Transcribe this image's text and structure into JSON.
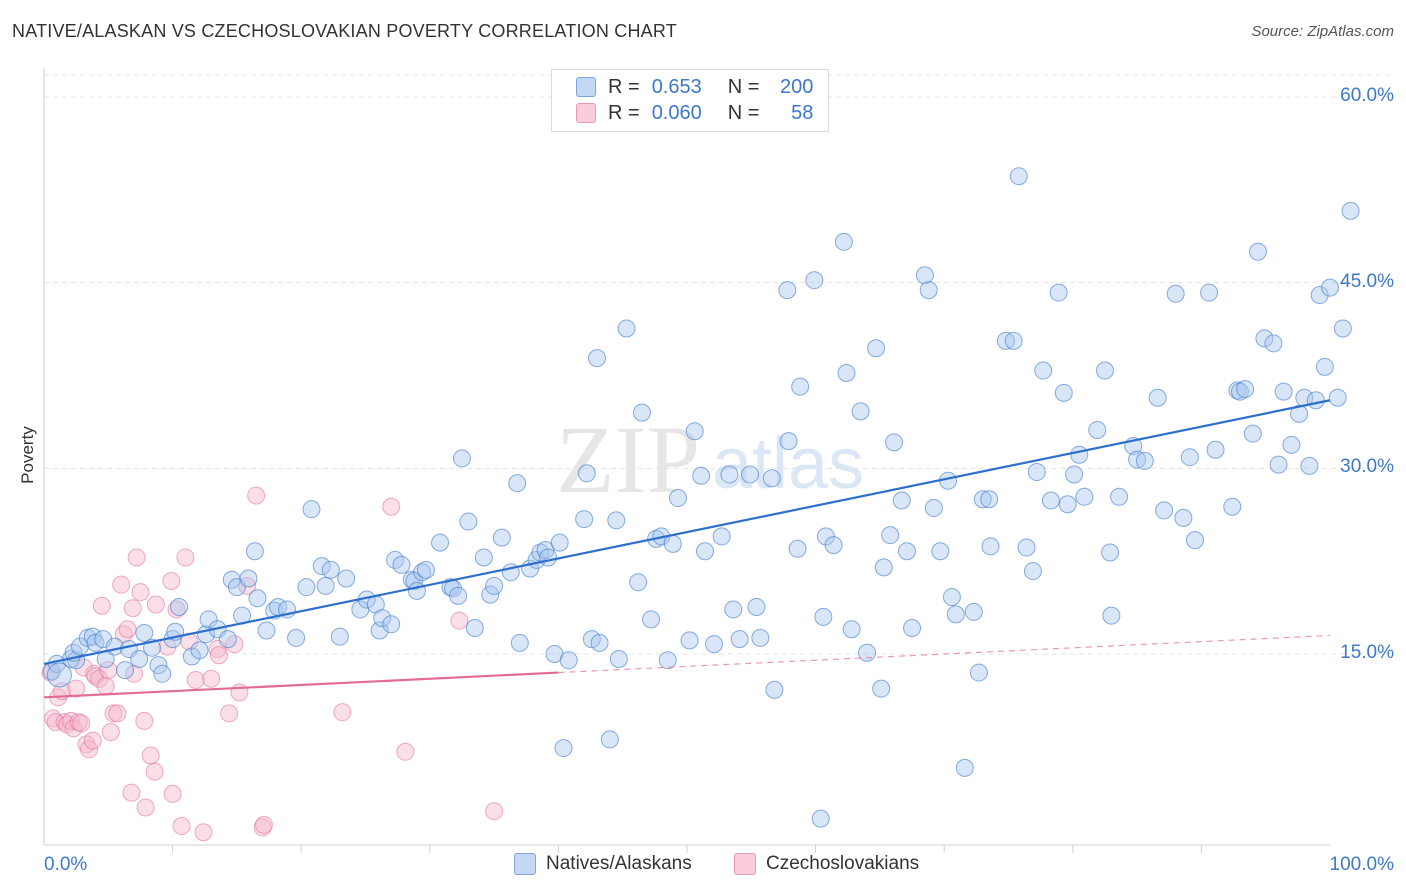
{
  "title": "NATIVE/ALASKAN VS CZECHOSLOVAKIAN POVERTY CORRELATION CHART",
  "source": "Source: ZipAtlas.com",
  "colors": {
    "blue": "#3d78c9",
    "blue_fill": "#a9c8ef",
    "blue_line": "#2d6fcc",
    "pink": "#e26b98",
    "pink_fill": "#f5b8cd",
    "grid": "#e4e4e4"
  },
  "legend": {
    "rows": [
      {
        "r_label": "R =",
        "r_value": "0.653",
        "n_label": "N =",
        "n_value": "200"
      },
      {
        "r_label": "R =",
        "r_value": "0.060",
        "n_label": "N =",
        "n_value": "58"
      }
    ]
  },
  "bottom_legend": {
    "series_1": "Natives/Alaskans",
    "series_2": "Czechoslovakians"
  },
  "chart_data": {
    "type": "scatter",
    "title": "NATIVE/ALASKAN VS CZECHOSLOVAKIAN POVERTY CORRELATION CHART",
    "xlabel": "",
    "ylabel": "Poverty",
    "xlim": [
      0,
      100
    ],
    "ylim": [
      0,
      60
    ],
    "x_tick_labels": [
      "0.0%",
      "100.0%"
    ],
    "y_tick_labels": [
      "15.0%",
      "30.0%",
      "45.0%",
      "60.0%"
    ],
    "y_ticks": [
      15,
      30,
      45,
      60
    ],
    "grid": true,
    "legend_position": "top-center",
    "series": [
      {
        "name": "Natives/Alaskans",
        "r": 0.653,
        "n": 200,
        "trend": {
          "x": [
            0,
            100
          ],
          "y": [
            14.2,
            35.5
          ]
        },
        "points": [
          [
            0.6,
            13.6
          ],
          [
            1.0,
            14.2
          ],
          [
            1.2,
            13.3
          ],
          [
            2.1,
            14.6
          ],
          [
            2.5,
            14.5
          ],
          [
            2.3,
            15.1
          ],
          [
            2.8,
            15.6
          ],
          [
            3.4,
            16.3
          ],
          [
            3.8,
            16.4
          ],
          [
            4.0,
            15.9
          ],
          [
            4.6,
            16.2
          ],
          [
            4.8,
            14.6
          ],
          [
            5.5,
            15.6
          ],
          [
            6.3,
            13.7
          ],
          [
            6.6,
            15.4
          ],
          [
            7.4,
            14.6
          ],
          [
            7.8,
            16.7
          ],
          [
            8.4,
            15.5
          ],
          [
            8.9,
            14.1
          ],
          [
            9.2,
            13.4
          ],
          [
            10.0,
            16.2
          ],
          [
            10.2,
            16.8
          ],
          [
            10.5,
            18.8
          ],
          [
            11.5,
            14.8
          ],
          [
            12.1,
            15.3
          ],
          [
            12.6,
            16.6
          ],
          [
            12.8,
            17.8
          ],
          [
            13.5,
            17.0
          ],
          [
            14.3,
            16.2
          ],
          [
            14.6,
            21.0
          ],
          [
            15.0,
            20.4
          ],
          [
            15.4,
            18.1
          ],
          [
            15.9,
            21.1
          ],
          [
            16.4,
            23.3
          ],
          [
            16.6,
            19.5
          ],
          [
            17.3,
            16.9
          ],
          [
            17.9,
            18.5
          ],
          [
            18.2,
            18.8
          ],
          [
            18.9,
            18.6
          ],
          [
            19.6,
            16.3
          ],
          [
            20.4,
            20.4
          ],
          [
            20.8,
            26.7
          ],
          [
            21.6,
            22.1
          ],
          [
            21.9,
            20.5
          ],
          [
            22.3,
            21.8
          ],
          [
            23.0,
            16.4
          ],
          [
            23.5,
            21.1
          ],
          [
            24.6,
            18.6
          ],
          [
            25.1,
            19.4
          ],
          [
            25.8,
            19.0
          ],
          [
            26.1,
            16.9
          ],
          [
            26.3,
            17.9
          ],
          [
            27.0,
            17.4
          ],
          [
            27.3,
            22.6
          ],
          [
            27.8,
            22.2
          ],
          [
            28.6,
            21.0
          ],
          [
            28.8,
            20.9
          ],
          [
            29.0,
            20.1
          ],
          [
            29.4,
            21.6
          ],
          [
            29.7,
            21.8
          ],
          [
            30.8,
            24.0
          ],
          [
            31.6,
            20.4
          ],
          [
            31.8,
            20.3
          ],
          [
            32.2,
            19.7
          ],
          [
            32.5,
            30.8
          ],
          [
            33.0,
            25.7
          ],
          [
            33.5,
            17.1
          ],
          [
            34.2,
            22.8
          ],
          [
            34.7,
            19.8
          ],
          [
            35.0,
            20.5
          ],
          [
            35.6,
            24.4
          ],
          [
            36.3,
            21.6
          ],
          [
            36.8,
            28.8
          ],
          [
            37.0,
            15.9
          ],
          [
            37.8,
            21.9
          ],
          [
            38.3,
            22.6
          ],
          [
            38.6,
            23.2
          ],
          [
            39.0,
            23.4
          ],
          [
            39.2,
            22.8
          ],
          [
            39.7,
            15.0
          ],
          [
            40.1,
            24.0
          ],
          [
            40.4,
            7.4
          ],
          [
            40.8,
            14.5
          ],
          [
            42.0,
            25.9
          ],
          [
            42.2,
            29.6
          ],
          [
            42.6,
            16.2
          ],
          [
            43.0,
            38.9
          ],
          [
            43.2,
            15.9
          ],
          [
            44.0,
            8.1
          ],
          [
            44.7,
            14.6
          ],
          [
            44.5,
            25.8
          ],
          [
            45.3,
            41.3
          ],
          [
            46.2,
            20.8
          ],
          [
            46.5,
            34.5
          ],
          [
            47.2,
            17.8
          ],
          [
            47.6,
            24.3
          ],
          [
            48.0,
            24.5
          ],
          [
            48.5,
            14.5
          ],
          [
            48.9,
            23.9
          ],
          [
            49.3,
            27.6
          ],
          [
            50.2,
            16.1
          ],
          [
            50.6,
            33.0
          ],
          [
            51.1,
            29.4
          ],
          [
            51.4,
            23.3
          ],
          [
            52.1,
            15.8
          ],
          [
            52.7,
            24.5
          ],
          [
            53.3,
            29.5
          ],
          [
            53.6,
            18.6
          ],
          [
            54.1,
            16.2
          ],
          [
            54.9,
            29.5
          ],
          [
            55.4,
            18.8
          ],
          [
            55.7,
            16.3
          ],
          [
            56.6,
            29.2
          ],
          [
            56.8,
            12.1
          ],
          [
            57.8,
            44.4
          ],
          [
            57.9,
            32.2
          ],
          [
            58.6,
            23.5
          ],
          [
            58.8,
            36.6
          ],
          [
            59.9,
            45.2
          ],
          [
            60.4,
            1.7
          ],
          [
            60.6,
            18.0
          ],
          [
            60.8,
            24.5
          ],
          [
            61.4,
            23.8
          ],
          [
            62.2,
            48.3
          ],
          [
            62.4,
            37.7
          ],
          [
            62.8,
            17.0
          ],
          [
            63.5,
            34.6
          ],
          [
            64.0,
            15.1
          ],
          [
            64.7,
            39.7
          ],
          [
            65.1,
            12.2
          ],
          [
            65.3,
            22.0
          ],
          [
            65.8,
            24.6
          ],
          [
            66.1,
            32.1
          ],
          [
            66.7,
            27.4
          ],
          [
            67.1,
            23.3
          ],
          [
            67.5,
            17.1
          ],
          [
            68.5,
            45.6
          ],
          [
            68.8,
            44.4
          ],
          [
            69.2,
            26.8
          ],
          [
            69.7,
            23.3
          ],
          [
            70.3,
            29.0
          ],
          [
            70.6,
            19.6
          ],
          [
            70.9,
            18.2
          ],
          [
            71.6,
            5.8
          ],
          [
            72.3,
            18.4
          ],
          [
            72.7,
            13.5
          ],
          [
            73.0,
            27.5
          ],
          [
            73.5,
            27.5
          ],
          [
            73.6,
            23.7
          ],
          [
            74.8,
            40.3
          ],
          [
            75.4,
            40.3
          ],
          [
            76.4,
            23.6
          ],
          [
            76.9,
            21.7
          ],
          [
            77.2,
            29.7
          ],
          [
            77.7,
            37.9
          ],
          [
            78.3,
            27.4
          ],
          [
            78.9,
            44.2
          ],
          [
            79.3,
            36.1
          ],
          [
            79.6,
            27.1
          ],
          [
            80.1,
            29.5
          ],
          [
            80.5,
            31.1
          ],
          [
            80.9,
            27.7
          ],
          [
            81.9,
            33.1
          ],
          [
            82.5,
            37.9
          ],
          [
            82.9,
            23.2
          ],
          [
            83.0,
            18.1
          ],
          [
            83.6,
            27.7
          ],
          [
            84.7,
            31.8
          ],
          [
            85.0,
            30.7
          ],
          [
            85.6,
            30.6
          ],
          [
            86.6,
            35.7
          ],
          [
            87.1,
            26.6
          ],
          [
            88.0,
            44.1
          ],
          [
            88.6,
            26.0
          ],
          [
            89.1,
            30.9
          ],
          [
            89.5,
            24.2
          ],
          [
            90.6,
            44.2
          ],
          [
            91.1,
            31.5
          ],
          [
            92.4,
            26.9
          ],
          [
            92.8,
            36.3
          ],
          [
            93.0,
            36.2
          ],
          [
            93.4,
            36.4
          ],
          [
            94.0,
            32.8
          ],
          [
            94.4,
            47.5
          ],
          [
            94.9,
            40.5
          ],
          [
            95.6,
            40.1
          ],
          [
            96.0,
            30.3
          ],
          [
            96.4,
            36.2
          ],
          [
            97.0,
            31.9
          ],
          [
            97.6,
            34.4
          ],
          [
            98.0,
            35.7
          ],
          [
            98.4,
            30.2
          ],
          [
            98.9,
            35.5
          ],
          [
            99.2,
            44.0
          ],
          [
            99.6,
            38.2
          ],
          [
            100.0,
            44.6
          ],
          [
            100.6,
            35.7
          ],
          [
            101.0,
            41.3
          ],
          [
            101.6,
            50.8
          ],
          [
            75.8,
            53.6
          ]
        ]
      },
      {
        "name": "Czechoslovakians",
        "r": 0.06,
        "n": 58,
        "trend": {
          "x": [
            0,
            40
          ],
          "y": [
            11.5,
            13.5
          ],
          "dashed_to": [
            100,
            16.5
          ]
        },
        "points": [
          [
            0.5,
            13.5
          ],
          [
            0.7,
            9.8
          ],
          [
            0.9,
            9.5
          ],
          [
            1.1,
            11.5
          ],
          [
            1.4,
            12.0
          ],
          [
            1.6,
            9.5
          ],
          [
            1.8,
            9.3
          ],
          [
            2.1,
            9.6
          ],
          [
            2.3,
            9.0
          ],
          [
            2.5,
            12.2
          ],
          [
            2.7,
            9.5
          ],
          [
            2.9,
            9.4
          ],
          [
            3.1,
            13.9
          ],
          [
            3.3,
            7.7
          ],
          [
            3.5,
            7.3
          ],
          [
            3.8,
            8.0
          ],
          [
            3.9,
            13.4
          ],
          [
            4.0,
            13.2
          ],
          [
            4.3,
            13.0
          ],
          [
            4.5,
            18.9
          ],
          [
            4.8,
            12.4
          ],
          [
            5.0,
            13.7
          ],
          [
            5.2,
            8.7
          ],
          [
            5.4,
            10.2
          ],
          [
            5.7,
            10.2
          ],
          [
            6.0,
            20.6
          ],
          [
            6.2,
            16.6
          ],
          [
            6.5,
            17.0
          ],
          [
            6.8,
            3.8
          ],
          [
            6.9,
            18.7
          ],
          [
            7.0,
            13.4
          ],
          [
            7.2,
            22.8
          ],
          [
            7.5,
            20.0
          ],
          [
            7.8,
            9.6
          ],
          [
            7.9,
            2.6
          ],
          [
            8.3,
            6.8
          ],
          [
            8.6,
            5.5
          ],
          [
            8.7,
            19.0
          ],
          [
            9.6,
            15.6
          ],
          [
            9.9,
            20.9
          ],
          [
            10.0,
            3.7
          ],
          [
            10.3,
            18.6
          ],
          [
            10.7,
            1.1
          ],
          [
            11.0,
            22.8
          ],
          [
            11.3,
            16.0
          ],
          [
            11.8,
            12.9
          ],
          [
            12.4,
            0.6
          ],
          [
            13.0,
            13.0
          ],
          [
            13.5,
            15.4
          ],
          [
            13.6,
            14.9
          ],
          [
            14.4,
            10.2
          ],
          [
            14.8,
            15.8
          ],
          [
            15.2,
            11.9
          ],
          [
            16.5,
            27.8
          ],
          [
            17.0,
            1.0
          ],
          [
            17.1,
            1.2
          ],
          [
            23.2,
            10.3
          ],
          [
            27.0,
            26.9
          ],
          [
            28.1,
            7.1
          ],
          [
            32.3,
            17.7
          ],
          [
            35.0,
            2.3
          ],
          [
            15.8,
            20.5
          ]
        ]
      }
    ]
  }
}
